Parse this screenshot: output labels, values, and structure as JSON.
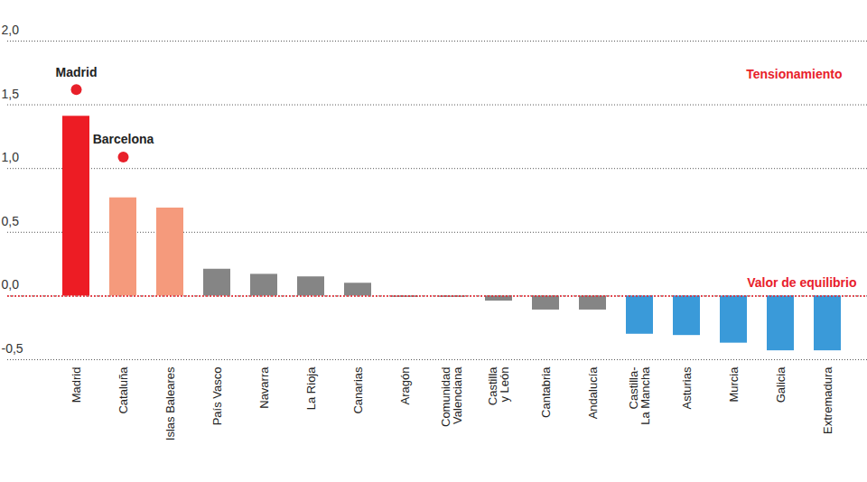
{
  "chart_data": {
    "type": "bar",
    "categories": [
      "Madrid",
      "Cataluña",
      "Islas Baleares",
      "País Vasco",
      "Navarra",
      "La Rioja",
      "Canarias",
      "Aragón",
      "Comunidad\nValenciana",
      "Castilla\ny León",
      "Cantabria",
      "Andalucía",
      "Castilla-\nLa Mancha",
      "Asturias",
      "Murcia",
      "Galicia",
      "Extremadura"
    ],
    "values": [
      1.41,
      0.77,
      0.69,
      0.21,
      0.17,
      0.15,
      0.1,
      -0.01,
      -0.01,
      -0.04,
      -0.11,
      -0.11,
      -0.3,
      -0.31,
      -0.37,
      -0.43,
      -0.43
    ],
    "colors": [
      "#ed1c24",
      "#f59a7c",
      "#f59a7c",
      "#858585",
      "#858585",
      "#858585",
      "#858585",
      "#858585",
      "#858585",
      "#858585",
      "#858585",
      "#858585",
      "#3a9ad9",
      "#3a9ad9",
      "#3a9ad9",
      "#3a9ad9",
      "#3a9ad9"
    ],
    "ylim": [
      -0.5,
      2.0
    ],
    "yticks": [
      {
        "value": -0.5,
        "label": "-0,5"
      },
      {
        "value": 0,
        "label": "0,0"
      },
      {
        "value": 0.5,
        "label": "0,5"
      },
      {
        "value": 1,
        "label": "1,0"
      },
      {
        "value": 1.5,
        "label": "1,5"
      },
      {
        "value": 2,
        "label": "2,0"
      }
    ],
    "grid": true,
    "points": {
      "categories": [
        "Madrid",
        "Cataluña"
      ],
      "labels": [
        "Madrid",
        "Barcelona"
      ],
      "values": [
        1.62,
        1.09
      ],
      "color": "#e8202a"
    },
    "reference_line": {
      "value": 0,
      "label": "Valor de equilibrio",
      "color": "#e8202a"
    },
    "annotations": [
      {
        "text": "Tensionamiento",
        "color": "#e8202a"
      }
    ]
  }
}
